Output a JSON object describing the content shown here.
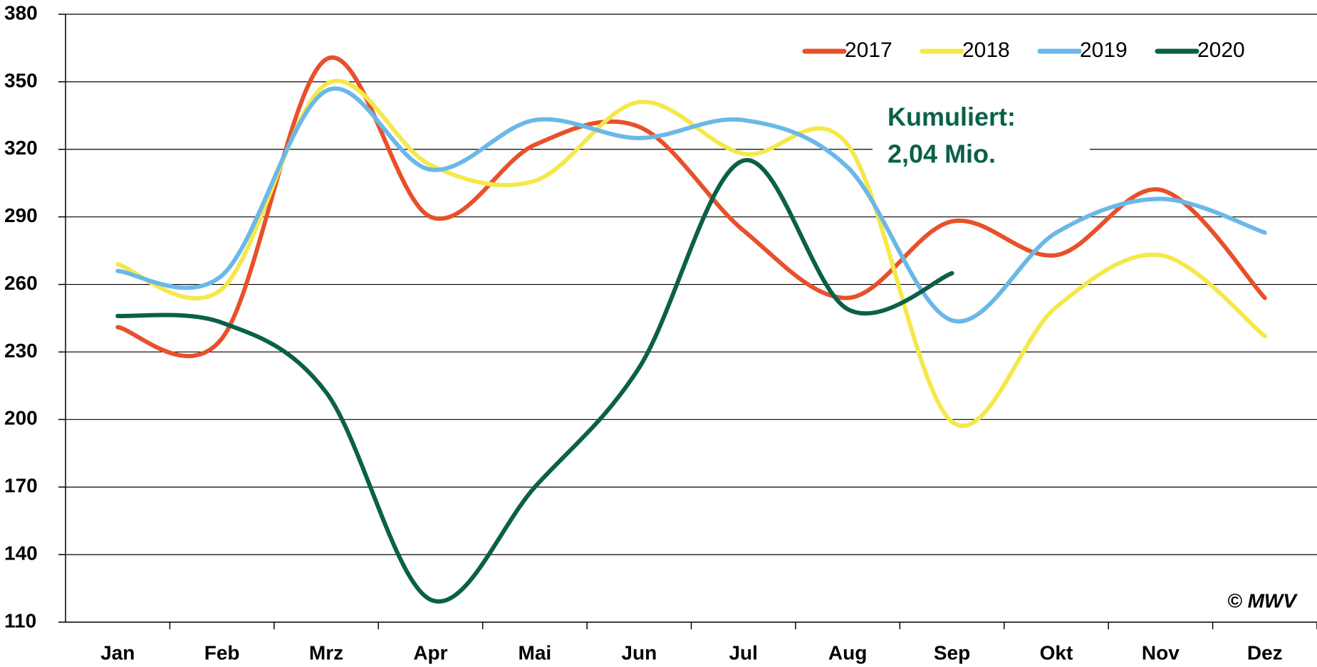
{
  "chart_data": {
    "type": "line",
    "categories": [
      "Jan",
      "Feb",
      "Mrz",
      "Apr",
      "Mai",
      "Jun",
      "Jul",
      "Aug",
      "Sep",
      "Okt",
      "Nov",
      "Dez"
    ],
    "series": [
      {
        "name": "2017",
        "color": "#e8502a",
        "values": [
          241,
          236,
          360,
          290,
          322,
          330,
          284,
          254,
          288,
          273,
          302,
          254
        ]
      },
      {
        "name": "2018",
        "color": "#f5e84a",
        "values": [
          269,
          258,
          349,
          313,
          306,
          341,
          318,
          322,
          199,
          250,
          273,
          237
        ]
      },
      {
        "name": "2019",
        "color": "#6bb8e8",
        "values": [
          266,
          264,
          346,
          311,
          333,
          325,
          333,
          312,
          244,
          283,
          298,
          283
        ]
      },
      {
        "name": "2020",
        "color": "#0a6048",
        "values": [
          246,
          243,
          212,
          120,
          170,
          223,
          315,
          249,
          265,
          null,
          null,
          null
        ]
      }
    ],
    "ylim": [
      110,
      380
    ],
    "yticks": [
      110,
      140,
      170,
      200,
      230,
      260,
      290,
      320,
      350,
      380
    ],
    "grid": true,
    "legend": "top-right",
    "annotations": [
      "Kumuliert:",
      "2,04 Mio."
    ],
    "copyright": "© MWV"
  }
}
